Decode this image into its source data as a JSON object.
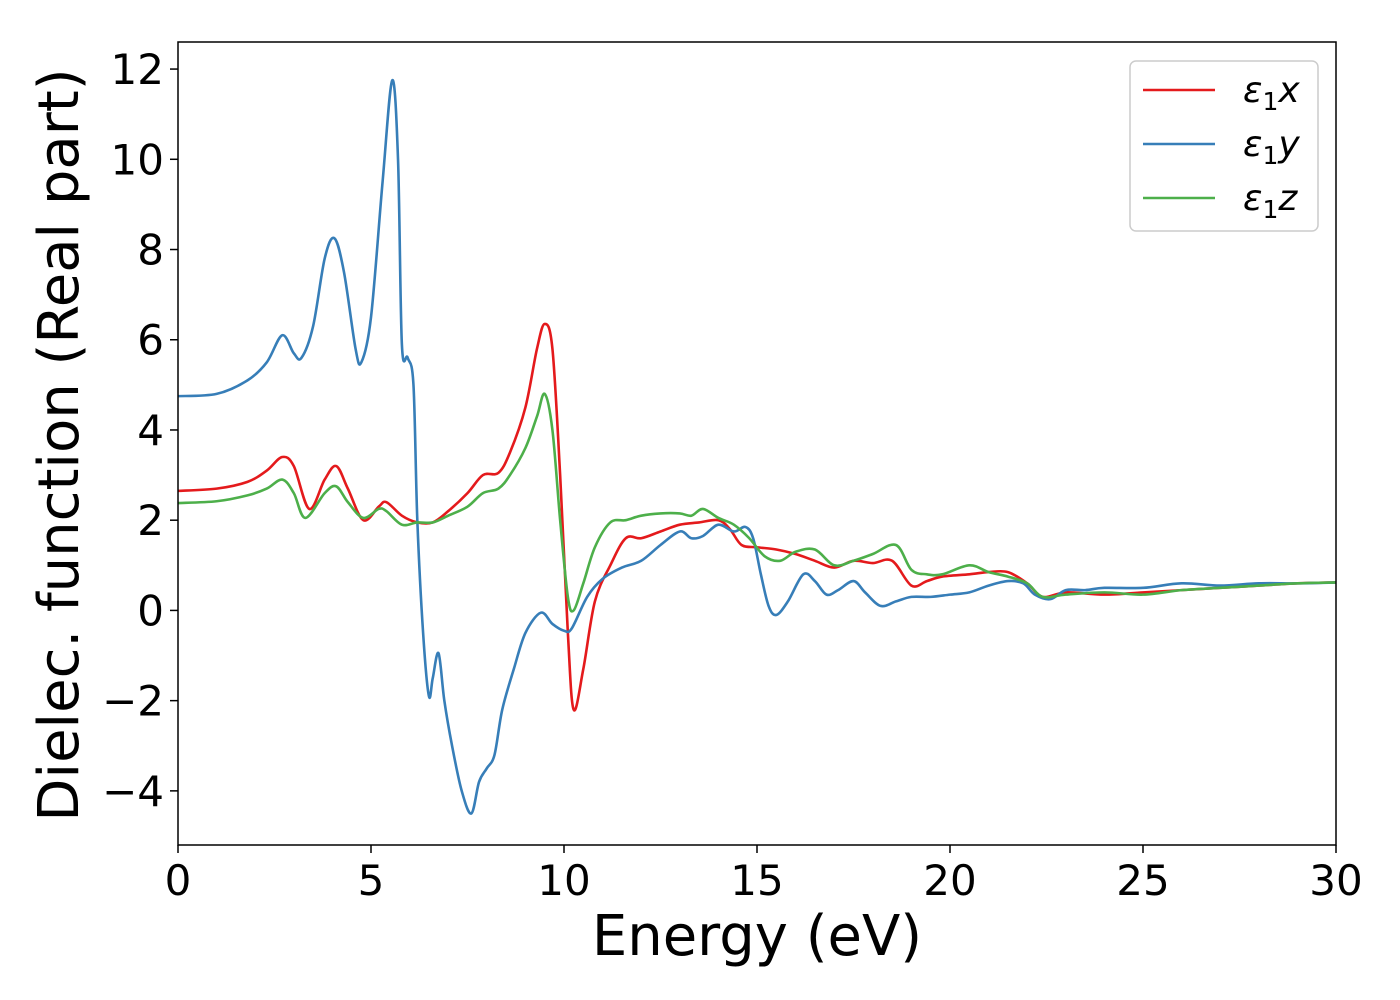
{
  "chart_data": {
    "type": "line",
    "xlabel": "Energy (eV)",
    "ylabel": "Dielec. function (Real part)",
    "xlim": [
      0,
      30
    ],
    "ylim": [
      -5.2,
      12.6
    ],
    "xticks": [
      0,
      5,
      10,
      15,
      20,
      25,
      30
    ],
    "xtick_labels": [
      "0",
      "5",
      "10",
      "15",
      "20",
      "25",
      "30"
    ],
    "yticks": [
      -4,
      -2,
      0,
      2,
      4,
      6,
      8,
      10,
      12
    ],
    "ytick_labels": [
      "−4",
      "−2",
      "0",
      "2",
      "4",
      "6",
      "8",
      "10",
      "12"
    ],
    "grid": false,
    "legend_position": "top-right",
    "series": [
      {
        "name": "ε₁x",
        "label_main": "ε",
        "label_sub": "1",
        "label_suffix": "x",
        "color": "#e41a1c",
        "x": [
          0,
          1,
          1.8,
          2.3,
          2.7,
          3.0,
          3.4,
          3.8,
          4.1,
          4.4,
          4.8,
          5.2,
          5.4,
          5.8,
          6.2,
          6.6,
          7.0,
          7.5,
          7.9,
          8.3,
          8.6,
          9.0,
          9.3,
          9.5,
          9.7,
          9.9,
          10.1,
          10.25,
          10.5,
          10.8,
          11.2,
          11.6,
          12.0,
          12.5,
          13.0,
          13.5,
          14.0,
          14.3,
          14.6,
          15.0,
          15.5,
          16.0,
          16.5,
          17.0,
          17.5,
          18.0,
          18.5,
          19.0,
          19.4,
          19.8,
          20.5,
          21.0,
          21.5,
          22.0,
          22.4,
          23.0,
          24.0,
          25.0,
          26.0,
          27.0,
          28.0,
          29.0,
          30.0
        ],
        "values": [
          2.65,
          2.7,
          2.85,
          3.1,
          3.4,
          3.2,
          2.25,
          2.9,
          3.2,
          2.7,
          2.0,
          2.3,
          2.4,
          2.1,
          1.95,
          1.95,
          2.2,
          2.6,
          3.0,
          3.05,
          3.5,
          4.5,
          5.8,
          6.35,
          5.8,
          3.0,
          -0.5,
          -2.2,
          -1.3,
          0.2,
          1.0,
          1.6,
          1.6,
          1.75,
          1.9,
          1.95,
          2.0,
          1.8,
          1.45,
          1.4,
          1.35,
          1.25,
          1.1,
          0.95,
          1.1,
          1.05,
          1.1,
          0.55,
          0.65,
          0.75,
          0.8,
          0.85,
          0.85,
          0.6,
          0.3,
          0.4,
          0.35,
          0.4,
          0.45,
          0.5,
          0.55,
          0.6,
          0.62
        ]
      },
      {
        "name": "ε₁y",
        "label_main": "ε",
        "label_sub": "1",
        "label_suffix": "y",
        "color": "#377eb8",
        "x": [
          0,
          1,
          1.8,
          2.3,
          2.7,
          3.0,
          3.2,
          3.5,
          3.8,
          4.05,
          4.3,
          4.6,
          4.75,
          5.0,
          5.3,
          5.55,
          5.7,
          5.8,
          5.95,
          6.1,
          6.2,
          6.35,
          6.5,
          6.6,
          6.75,
          6.9,
          7.1,
          7.35,
          7.6,
          7.8,
          8.0,
          8.2,
          8.4,
          8.7,
          9.0,
          9.4,
          9.7,
          10.0,
          10.2,
          10.6,
          11.0,
          11.5,
          12.0,
          12.5,
          13.0,
          13.3,
          13.6,
          14.0,
          14.4,
          14.7,
          14.9,
          15.1,
          15.3,
          15.5,
          15.8,
          16.2,
          16.5,
          16.8,
          17.1,
          17.5,
          17.8,
          18.2,
          18.6,
          19.0,
          19.5,
          20.0,
          20.5,
          21.0,
          21.5,
          21.9,
          22.2,
          22.6,
          23.0,
          23.5,
          24.0,
          25.0,
          26.0,
          27.0,
          28.0,
          29.0,
          30.0
        ],
        "values": [
          4.75,
          4.8,
          5.1,
          5.5,
          6.1,
          5.7,
          5.6,
          6.3,
          7.8,
          8.25,
          7.5,
          5.8,
          5.5,
          6.5,
          9.5,
          11.75,
          10.0,
          5.9,
          5.6,
          5.0,
          2.0,
          -0.5,
          -1.9,
          -1.5,
          -0.95,
          -2.0,
          -3.0,
          -4.0,
          -4.5,
          -3.8,
          -3.5,
          -3.2,
          -2.2,
          -1.3,
          -0.5,
          -0.05,
          -0.3,
          -0.45,
          -0.4,
          0.3,
          0.7,
          0.95,
          1.1,
          1.45,
          1.75,
          1.6,
          1.65,
          1.9,
          1.75,
          1.85,
          1.6,
          0.8,
          0.1,
          -0.1,
          0.2,
          0.8,
          0.65,
          0.35,
          0.45,
          0.65,
          0.4,
          0.1,
          0.2,
          0.3,
          0.3,
          0.35,
          0.4,
          0.55,
          0.65,
          0.6,
          0.35,
          0.25,
          0.45,
          0.45,
          0.5,
          0.5,
          0.6,
          0.55,
          0.6,
          0.6,
          0.62
        ]
      },
      {
        "name": "ε₁z",
        "label_main": "ε",
        "label_sub": "1",
        "label_suffix": "z",
        "color": "#4daf4a",
        "x": [
          0,
          1,
          1.8,
          2.3,
          2.7,
          3.0,
          3.3,
          3.8,
          4.1,
          4.4,
          4.8,
          5.2,
          5.4,
          5.8,
          6.2,
          6.6,
          7.0,
          7.5,
          7.9,
          8.3,
          8.6,
          9.0,
          9.3,
          9.5,
          9.7,
          9.9,
          10.1,
          10.25,
          10.5,
          10.8,
          11.2,
          11.6,
          12.0,
          12.5,
          13.0,
          13.3,
          13.6,
          14.0,
          14.4,
          14.8,
          15.2,
          15.6,
          16.0,
          16.5,
          17.0,
          17.5,
          18.0,
          18.6,
          19.0,
          19.4,
          19.8,
          20.5,
          21.0,
          21.5,
          22.0,
          22.4,
          23.0,
          24.0,
          25.0,
          26.0,
          27.0,
          28.0,
          29.0,
          30.0
        ],
        "values": [
          2.38,
          2.42,
          2.55,
          2.7,
          2.9,
          2.6,
          2.05,
          2.6,
          2.75,
          2.4,
          2.05,
          2.25,
          2.2,
          1.9,
          1.95,
          1.95,
          2.1,
          2.3,
          2.6,
          2.7,
          3.0,
          3.6,
          4.3,
          4.8,
          4.0,
          2.0,
          0.3,
          0.0,
          0.6,
          1.4,
          1.95,
          2.0,
          2.1,
          2.15,
          2.15,
          2.1,
          2.25,
          2.05,
          1.9,
          1.6,
          1.2,
          1.1,
          1.3,
          1.35,
          1.0,
          1.1,
          1.25,
          1.45,
          0.9,
          0.8,
          0.8,
          1.0,
          0.85,
          0.75,
          0.6,
          0.3,
          0.35,
          0.4,
          0.35,
          0.45,
          0.5,
          0.55,
          0.6,
          0.62
        ]
      }
    ]
  }
}
